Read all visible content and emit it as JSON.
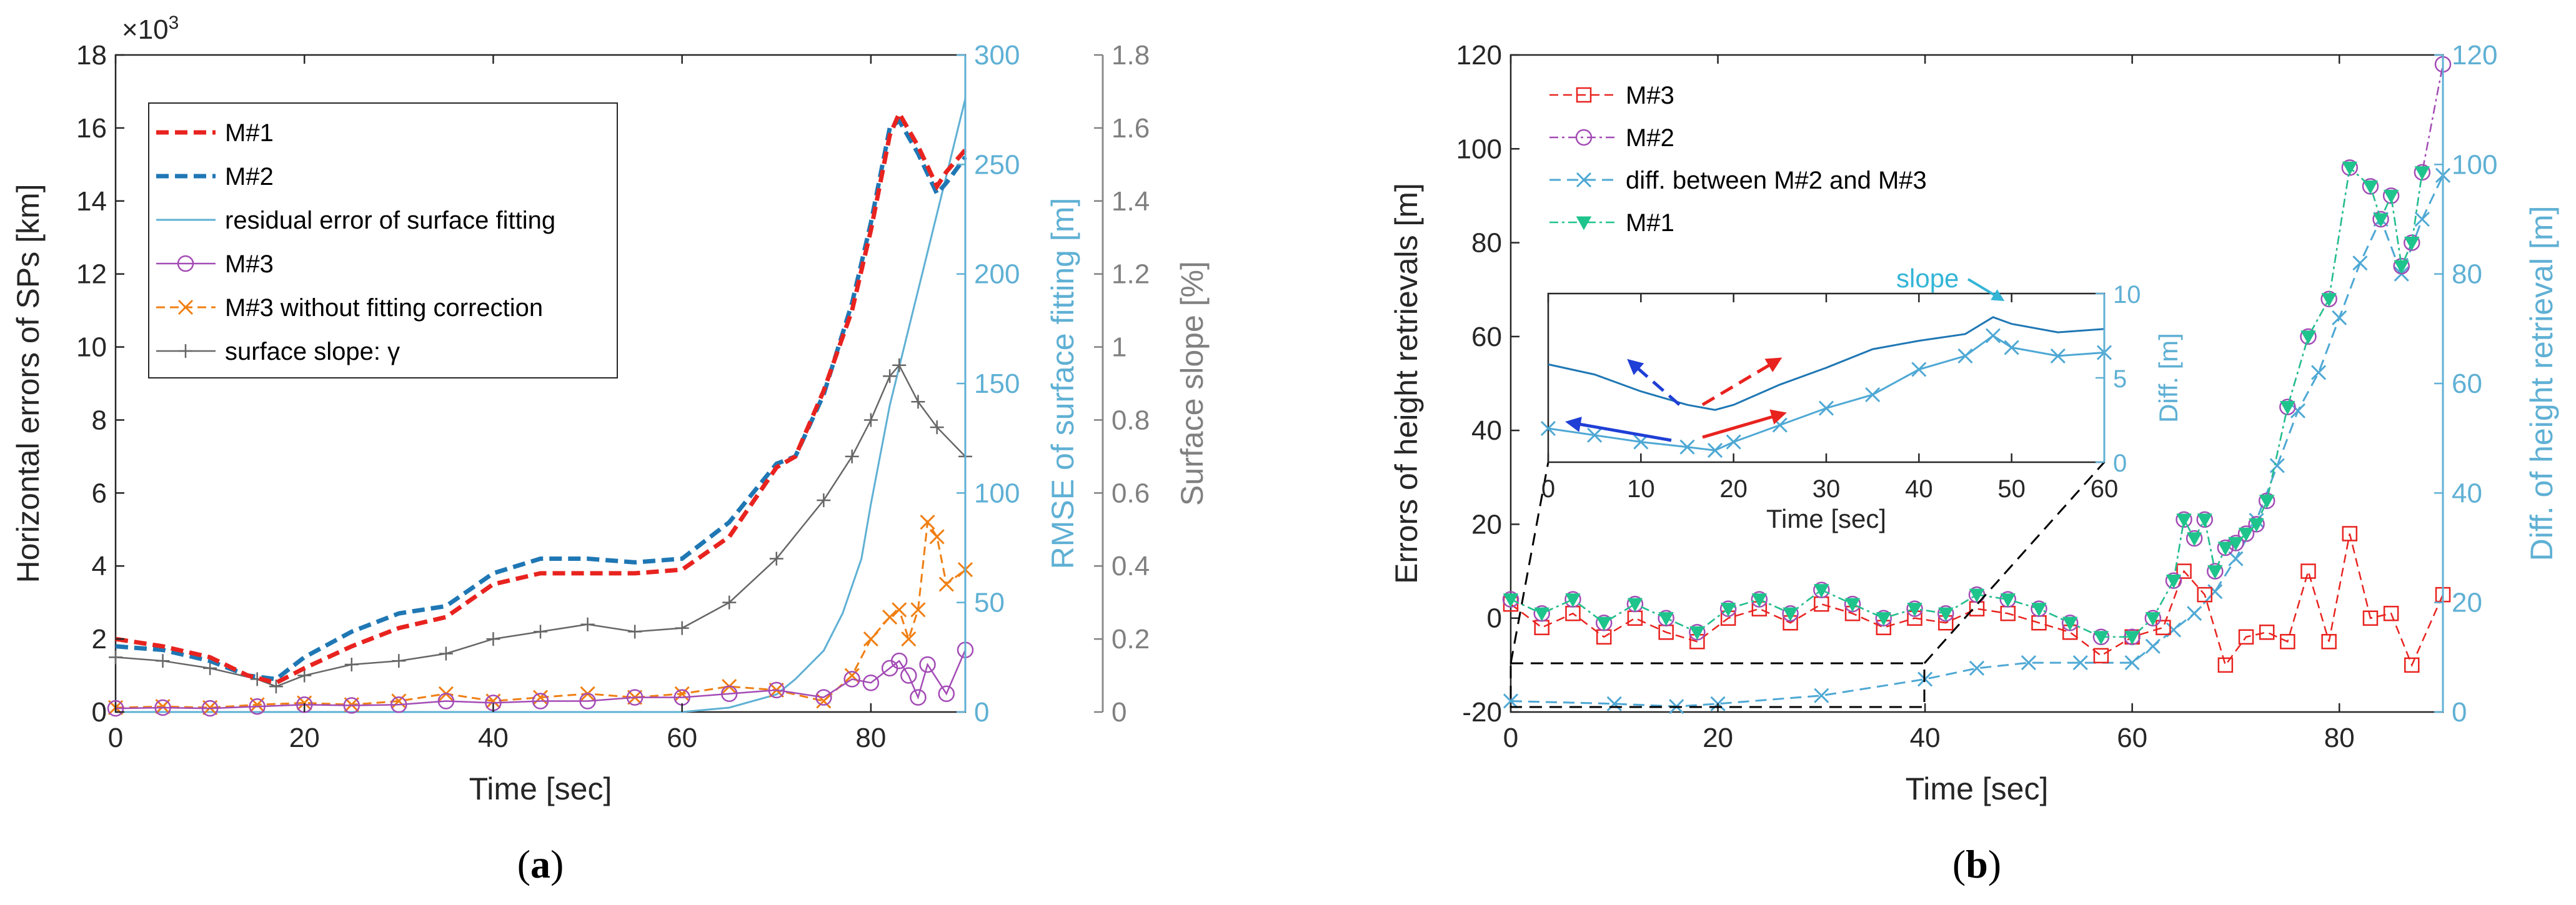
{
  "chart_data": [
    {
      "type": "line",
      "panel_label": "(a)",
      "panel_letter": "a",
      "xlabel": "Time [sec]",
      "xlim": [
        0,
        90
      ],
      "xticks": [
        0,
        20,
        40,
        60,
        80
      ],
      "ylabel": "Horizontal errors of SPs [km]",
      "ylim": [
        0,
        18
      ],
      "yticks": [
        0,
        2,
        4,
        6,
        8,
        10,
        12,
        14,
        16,
        18
      ],
      "yexponent": "×10",
      "yexponent_power": "3",
      "y2label": "RMSE of surface fitting [m]",
      "y2lim": [
        0,
        300
      ],
      "y2ticks": [
        0,
        50,
        100,
        150,
        200,
        250,
        300
      ],
      "y3label": "Surface slope [%]",
      "y3lim": [
        0,
        1.8
      ],
      "y3ticks": [
        "0",
        "0.2",
        "0.4",
        "0.6",
        "0.8",
        "1",
        "1.2",
        "1.4",
        "1.6",
        "1.8"
      ],
      "legend_position": "top-left",
      "series": [
        {
          "name": "M#1",
          "color": "#e8231f",
          "axis": "left",
          "x": [
            0,
            5,
            10,
            14,
            17,
            20,
            25,
            30,
            35,
            40,
            45,
            50,
            55,
            60,
            65,
            70,
            72,
            75,
            78,
            80,
            82,
            83,
            85,
            87,
            88,
            90
          ],
          "y": [
            2.0,
            1.8,
            1.5,
            1.0,
            0.8,
            1.2,
            1.8,
            2.3,
            2.6,
            3.5,
            3.8,
            3.8,
            3.8,
            3.9,
            4.8,
            6.7,
            7.0,
            8.8,
            11.0,
            13.2,
            15.8,
            16.4,
            15.5,
            14.4,
            14.8,
            15.4
          ]
        },
        {
          "name": "M#2",
          "color": "#1f77b4",
          "axis": "left",
          "x": [
            0,
            5,
            10,
            14,
            17,
            20,
            25,
            30,
            35,
            40,
            45,
            50,
            55,
            60,
            65,
            70,
            72,
            75,
            78,
            80,
            82,
            83,
            85,
            87,
            88,
            90
          ],
          "y": [
            1.8,
            1.7,
            1.4,
            1.0,
            0.9,
            1.5,
            2.2,
            2.7,
            2.9,
            3.8,
            4.2,
            4.2,
            4.1,
            4.2,
            5.2,
            6.8,
            7.0,
            8.7,
            11.2,
            13.4,
            16.0,
            16.2,
            15.3,
            14.2,
            14.5,
            15.2
          ]
        },
        {
          "name": "residual error of surface fitting",
          "color": "#5fb0d4",
          "axis": "y2",
          "x": [
            0,
            20,
            40,
            60,
            65,
            70,
            72,
            75,
            77,
            79,
            80,
            82,
            84,
            86,
            88,
            90
          ],
          "y": [
            0,
            0,
            0,
            0,
            2,
            8,
            15,
            28,
            45,
            70,
            95,
            140,
            175,
            210,
            245,
            280
          ]
        },
        {
          "name": "M#3",
          "color": "#a34bb5",
          "axis": "left",
          "x": [
            0,
            5,
            10,
            15,
            20,
            25,
            30,
            35,
            40,
            45,
            50,
            55,
            60,
            65,
            70,
            75,
            78,
            80,
            82,
            83,
            84,
            85,
            86,
            88,
            90
          ],
          "y": [
            0.1,
            0.12,
            0.1,
            0.15,
            0.2,
            0.18,
            0.2,
            0.3,
            0.25,
            0.3,
            0.3,
            0.4,
            0.4,
            0.5,
            0.6,
            0.4,
            0.9,
            0.8,
            1.2,
            1.4,
            1.0,
            0.4,
            1.3,
            0.5,
            1.7
          ]
        },
        {
          "name": "M#3 without fitting correction",
          "color": "#f07f13",
          "axis": "left",
          "x": [
            0,
            5,
            10,
            15,
            20,
            25,
            30,
            35,
            40,
            45,
            50,
            55,
            60,
            65,
            70,
            75,
            78,
            80,
            82,
            83,
            84,
            85,
            86,
            87,
            88,
            90
          ],
          "y": [
            0.12,
            0.15,
            0.12,
            0.2,
            0.25,
            0.2,
            0.3,
            0.5,
            0.3,
            0.4,
            0.5,
            0.4,
            0.5,
            0.7,
            0.6,
            0.3,
            1.0,
            2.0,
            2.6,
            2.8,
            2.0,
            2.8,
            5.2,
            4.8,
            3.5,
            3.9
          ]
        },
        {
          "name": "surface slope: γ",
          "color": "#666666",
          "axis": "y3",
          "x": [
            0,
            5,
            10,
            15,
            17,
            20,
            25,
            30,
            35,
            40,
            45,
            50,
            55,
            60,
            65,
            70,
            75,
            78,
            80,
            82,
            83,
            85,
            87,
            90
          ],
          "y": [
            0.15,
            0.14,
            0.12,
            0.09,
            0.07,
            0.1,
            0.13,
            0.14,
            0.16,
            0.2,
            0.22,
            0.24,
            0.22,
            0.23,
            0.3,
            0.42,
            0.58,
            0.7,
            0.8,
            0.92,
            0.95,
            0.85,
            0.78,
            0.7
          ]
        }
      ]
    },
    {
      "type": "line",
      "panel_label": "(b)",
      "panel_letter": "b",
      "xlabel": "Time [sec]",
      "xlim": [
        0,
        90
      ],
      "xticks": [
        0,
        20,
        40,
        60,
        80
      ],
      "ylabel": "Errors of height retrievals [m]",
      "ylim": [
        -20,
        120
      ],
      "yticks": [
        -20,
        0,
        20,
        40,
        60,
        80,
        100,
        120
      ],
      "y2label": "Diff. of height retrieval [m]",
      "y2lim": [
        0,
        120
      ],
      "y2ticks": [
        0,
        20,
        40,
        60,
        80,
        100,
        120
      ],
      "legend_position": "top-left",
      "series": [
        {
          "name": "M#3",
          "color": "#e8231f",
          "axis": "left",
          "x": [
            0,
            3,
            6,
            9,
            12,
            15,
            18,
            21,
            24,
            27,
            30,
            33,
            36,
            39,
            42,
            45,
            48,
            51,
            54,
            57,
            60,
            63,
            65,
            67,
            69,
            71,
            73,
            75,
            77,
            79,
            81,
            83,
            85,
            87,
            90
          ],
          "y": [
            3,
            -2,
            1,
            -4,
            0,
            -3,
            -5,
            0,
            2,
            -1,
            3,
            1,
            -2,
            0,
            -1,
            2,
            1,
            -1,
            -3,
            -8,
            -4,
            -2,
            10,
            5,
            -10,
            -4,
            -3,
            -5,
            10,
            -5,
            18,
            0,
            1,
            -10,
            5
          ]
        },
        {
          "name": "M#2",
          "color": "#a34bb5",
          "axis": "left",
          "x": [
            0,
            3,
            6,
            9,
            12,
            15,
            18,
            21,
            24,
            27,
            30,
            33,
            36,
            39,
            42,
            45,
            48,
            51,
            54,
            57,
            60,
            62,
            64,
            65,
            66,
            67,
            68,
            69,
            70,
            71,
            72,
            73,
            75,
            77,
            79,
            81,
            83,
            84,
            85,
            86,
            87,
            88,
            90
          ],
          "y": [
            4,
            1,
            4,
            -1,
            3,
            0,
            -3,
            2,
            4,
            1,
            6,
            3,
            0,
            2,
            1,
            5,
            4,
            2,
            -1,
            -4,
            -4,
            0,
            8,
            21,
            17,
            21,
            10,
            15,
            16,
            18,
            20,
            25,
            45,
            60,
            68,
            96,
            92,
            85,
            90,
            75,
            80,
            95,
            118
          ]
        },
        {
          "name": "diff. between M#2 and M#3",
          "color": "#4ea8d4",
          "axis": "y2",
          "x": [
            0,
            10,
            16,
            20,
            30,
            40,
            45,
            50,
            55,
            60,
            62,
            64,
            66,
            68,
            70,
            72,
            74,
            76,
            78,
            80,
            82,
            84,
            86,
            88,
            90
          ],
          "y": [
            2,
            1.5,
            1,
            1.5,
            3,
            6,
            8,
            9,
            9,
            9,
            12,
            15,
            18,
            22,
            28,
            35,
            45,
            55,
            62,
            72,
            82,
            90,
            80,
            90,
            98
          ]
        },
        {
          "name": "M#1",
          "color": "#1ec48c",
          "axis": "left",
          "x": [
            0,
            3,
            6,
            9,
            12,
            15,
            18,
            21,
            24,
            27,
            30,
            33,
            36,
            39,
            42,
            45,
            48,
            51,
            54,
            57,
            60,
            62,
            64,
            65,
            66,
            67,
            68,
            69,
            70,
            71,
            72,
            73,
            75,
            77,
            79,
            81,
            83,
            84,
            85,
            86,
            87,
            88
          ],
          "y": [
            4,
            1,
            4,
            -1,
            3,
            0,
            -3,
            2,
            4,
            1,
            6,
            3,
            0,
            2,
            1,
            5,
            4,
            2,
            -1,
            -4,
            -4,
            0,
            8,
            21,
            17,
            21,
            10,
            15,
            16,
            18,
            20,
            25,
            45,
            60,
            68,
            96,
            92,
            85,
            90,
            75,
            80,
            95
          ]
        }
      ],
      "inset": {
        "xlabel": "Time [sec]",
        "xlim": [
          0,
          60
        ],
        "xticks": [
          0,
          10,
          20,
          30,
          40,
          50,
          60
        ],
        "ylabel": "Diff. [m]",
        "ylim": [
          0,
          10
        ],
        "yticks": [
          0,
          5,
          10
        ],
        "annotation": "slope",
        "series": [
          {
            "name": "diff. between M#2 and M#3",
            "color": "#4ea8d4",
            "x": [
              0,
              5,
              10,
              15,
              18,
              20,
              25,
              30,
              35,
              40,
              45,
              48,
              50,
              55,
              60
            ],
            "y": [
              2,
              1.6,
              1.2,
              0.9,
              0.7,
              1.2,
              2.2,
              3.2,
              4.0,
              5.5,
              6.3,
              7.5,
              6.8,
              6.3,
              6.5
            ]
          },
          {
            "name": "surface slope",
            "color": "#1f77b4",
            "x": [
              0,
              5,
              10,
              15,
              18,
              20,
              25,
              30,
              35,
              40,
              45,
              48,
              50,
              55,
              60
            ],
            "y": [
              5.8,
              5.2,
              4.2,
              3.4,
              3.1,
              3.4,
              4.6,
              5.6,
              6.7,
              7.2,
              7.6,
              8.6,
              8.2,
              7.7,
              7.9
            ]
          }
        ]
      }
    }
  ]
}
